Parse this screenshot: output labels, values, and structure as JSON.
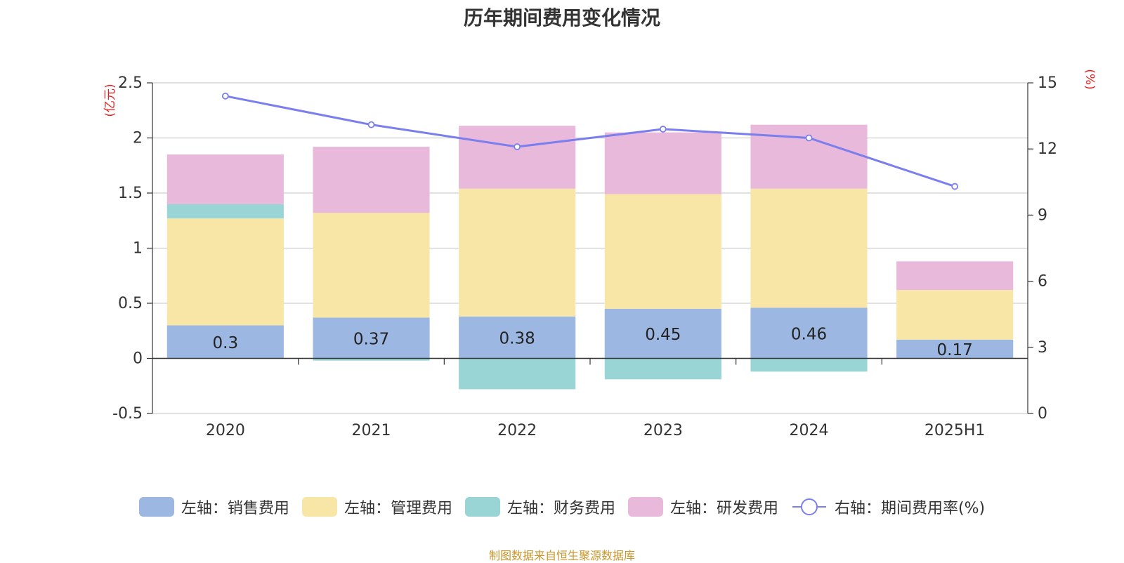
{
  "colors": {
    "sales": "#9cb7e1",
    "admin": "#f8e6a6",
    "finance": "#98d5d4",
    "rnd": "#e8b9da",
    "rate": "#7b7fee",
    "axis_unit": "#e02020",
    "footer": "#c8962c"
  },
  "chart_data": {
    "type": "bar",
    "title": "历年期间费用变化情况",
    "categories": [
      "2020",
      "2021",
      "2022",
      "2023",
      "2024",
      "2025H1"
    ],
    "left_axis": {
      "unit_label": "(亿元)",
      "ylim": [
        -0.5,
        2.5
      ],
      "ticks": [
        "-0.5",
        "0",
        "0.5",
        "1",
        "1.5",
        "2",
        "2.5"
      ]
    },
    "right_axis": {
      "unit_label": "(%)",
      "ylim": [
        0,
        15
      ],
      "ticks": [
        "0",
        "3",
        "6",
        "9",
        "12",
        "15"
      ]
    },
    "series": [
      {
        "name": "左轴：销售费用",
        "key": "sales",
        "stack": true,
        "axis": "left",
        "values": [
          0.3,
          0.37,
          0.38,
          0.45,
          0.46,
          0.17
        ],
        "labels": [
          "0.3",
          "0.37",
          "0.38",
          "0.45",
          "0.46",
          "0.17"
        ]
      },
      {
        "name": "左轴：管理费用",
        "key": "admin",
        "stack": true,
        "axis": "left",
        "values": [
          0.97,
          0.95,
          1.16,
          1.04,
          1.08,
          0.45
        ]
      },
      {
        "name": "左轴：财务费用",
        "key": "finance",
        "stack": true,
        "axis": "left",
        "values": [
          0.13,
          -0.02,
          -0.28,
          -0.19,
          -0.12,
          0.0
        ]
      },
      {
        "name": "左轴：研发费用",
        "key": "rnd",
        "stack": true,
        "axis": "left",
        "values": [
          0.45,
          0.6,
          0.57,
          0.56,
          0.58,
          0.26
        ]
      },
      {
        "name": "右轴：期间费用率(%)",
        "key": "rate",
        "type": "line",
        "axis": "right",
        "values": [
          14.4,
          13.1,
          12.1,
          12.9,
          12.5,
          10.3
        ]
      }
    ],
    "grid": true,
    "legend_position": "bottom"
  },
  "footer": "制图数据来自恒生聚源数据库"
}
